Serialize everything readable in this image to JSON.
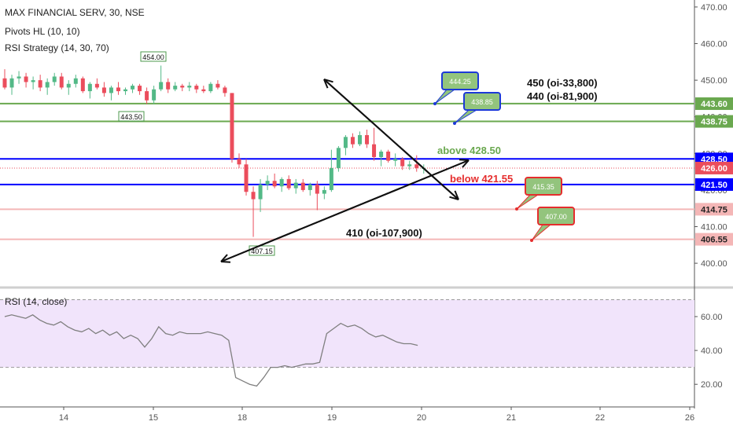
{
  "header": {
    "symbol_line": "MAX FINANCIAL SERV, 30, NSE",
    "indicator_1": "Pivots HL (10, 10)",
    "indicator_2": "RSI Strategy (14, 30, 70)"
  },
  "rsi_pane": {
    "label": "RSI (14, close)"
  },
  "colors": {
    "bull": "#53b987",
    "bear": "#eb4d5c",
    "green_line": "#6aa84f",
    "blue_line": "#0000ff",
    "pink_line": "#f4b6b6",
    "rsi_fill": "#f1e4fb",
    "rsi_line": "#7f7f7f",
    "callout_fill": "#93c47d",
    "callout_blue_border": "#1c39d8",
    "callout_red_border": "#e52d2d"
  },
  "chart_data": [
    {
      "type": "candlestick",
      "title": "MAX FINANCIAL SERV, 30, NSE",
      "x_ticks": [
        "14",
        "15",
        "18",
        "19",
        "20",
        "21",
        "22",
        "26"
      ],
      "ylim": [
        395,
        472
      ],
      "y_ticks": [
        "400.00",
        "410.00",
        "420.00",
        "430.00",
        "440.00",
        "450.00",
        "460.00",
        "470.00"
      ],
      "price_labels": [
        {
          "text": "443.60",
          "value": 443.6,
          "color": "#6aa84f"
        },
        {
          "text": "438.75",
          "value": 438.75,
          "color": "#6aa84f"
        },
        {
          "text": "428.50",
          "value": 428.5,
          "color": "#0000ff"
        },
        {
          "text": "426.00",
          "value": 426.0,
          "color": "#eb4d5c"
        },
        {
          "text": "421.50",
          "value": 421.5,
          "color": "#0000ff"
        },
        {
          "text": "414.75",
          "value": 414.75,
          "color": "#f4b6b6"
        },
        {
          "text": "406.55",
          "value": 406.55,
          "color": "#f4b6b6"
        }
      ],
      "pivot_labels": [
        {
          "text": "454.00",
          "kind": "high"
        },
        {
          "text": "443.50",
          "kind": "low"
        },
        {
          "text": "407.15",
          "kind": "low"
        }
      ],
      "annotations": [
        {
          "text": "450 (oi-33,800)",
          "color": "#111111"
        },
        {
          "text": "440 (oi-81,900)",
          "color": "#111111"
        },
        {
          "text": "above 428.50",
          "color": "#6aa84f"
        },
        {
          "text": "below 421.55",
          "color": "#e52d2d"
        },
        {
          "text": "410 (oi-107,900)",
          "color": "#111111"
        }
      ],
      "callouts": [
        {
          "text": "444.25",
          "border": "blue"
        },
        {
          "text": "438.85",
          "border": "blue"
        },
        {
          "text": "415.35",
          "border": "red"
        },
        {
          "text": "407.00",
          "border": "red"
        }
      ],
      "candles": [
        {
          "o": 450.5,
          "h": 453.0,
          "l": 447.5,
          "c": 448.0
        },
        {
          "o": 448.0,
          "h": 451.5,
          "l": 446.0,
          "c": 450.5
        },
        {
          "o": 450.5,
          "h": 452.5,
          "l": 449.0,
          "c": 451.0
        },
        {
          "o": 451.0,
          "h": 452.0,
          "l": 448.0,
          "c": 449.5
        },
        {
          "o": 449.5,
          "h": 451.0,
          "l": 447.5,
          "c": 450.0
        },
        {
          "o": 450.0,
          "h": 451.5,
          "l": 447.0,
          "c": 448.0
        },
        {
          "o": 448.0,
          "h": 450.5,
          "l": 446.0,
          "c": 449.5
        },
        {
          "o": 449.5,
          "h": 452.0,
          "l": 448.5,
          "c": 451.0
        },
        {
          "o": 451.0,
          "h": 452.0,
          "l": 447.5,
          "c": 448.0
        },
        {
          "o": 448.0,
          "h": 450.0,
          "l": 446.0,
          "c": 449.0
        },
        {
          "o": 449.0,
          "h": 451.5,
          "l": 448.0,
          "c": 450.5
        },
        {
          "o": 450.5,
          "h": 451.0,
          "l": 446.5,
          "c": 447.0
        },
        {
          "o": 447.0,
          "h": 449.5,
          "l": 445.0,
          "c": 449.0
        },
        {
          "o": 449.0,
          "h": 450.5,
          "l": 447.5,
          "c": 448.0
        },
        {
          "o": 448.0,
          "h": 449.5,
          "l": 445.5,
          "c": 446.5
        },
        {
          "o": 446.5,
          "h": 448.5,
          "l": 444.5,
          "c": 448.0
        },
        {
          "o": 448.0,
          "h": 449.5,
          "l": 446.0,
          "c": 447.0
        },
        {
          "o": 447.0,
          "h": 448.0,
          "l": 446.0,
          "c": 447.5
        },
        {
          "o": 447.5,
          "h": 449.0,
          "l": 446.5,
          "c": 448.5
        },
        {
          "o": 448.5,
          "h": 449.0,
          "l": 446.0,
          "c": 447.0
        },
        {
          "o": 447.0,
          "h": 448.0,
          "l": 443.5,
          "c": 444.5
        },
        {
          "o": 444.5,
          "h": 448.5,
          "l": 443.5,
          "c": 447.5
        },
        {
          "o": 447.5,
          "h": 454.0,
          "l": 447.0,
          "c": 449.5
        },
        {
          "o": 449.5,
          "h": 450.5,
          "l": 446.5,
          "c": 447.5
        },
        {
          "o": 447.5,
          "h": 449.5,
          "l": 447.0,
          "c": 448.5
        },
        {
          "o": 448.5,
          "h": 449.0,
          "l": 447.0,
          "c": 448.0
        },
        {
          "o": 448.0,
          "h": 449.5,
          "l": 447.0,
          "c": 448.5
        },
        {
          "o": 448.5,
          "h": 449.0,
          "l": 446.5,
          "c": 447.5
        },
        {
          "o": 447.5,
          "h": 448.5,
          "l": 446.5,
          "c": 447.0
        },
        {
          "o": 447.0,
          "h": 449.5,
          "l": 446.5,
          "c": 449.0
        },
        {
          "o": 449.0,
          "h": 450.0,
          "l": 447.5,
          "c": 448.0
        },
        {
          "o": 448.0,
          "h": 448.5,
          "l": 445.5,
          "c": 446.5
        },
        {
          "o": 446.5,
          "h": 446.5,
          "l": 427.5,
          "c": 428.5
        },
        {
          "o": 428.5,
          "h": 430.0,
          "l": 426.0,
          "c": 427.0
        },
        {
          "o": 427.0,
          "h": 428.5,
          "l": 418.5,
          "c": 419.5
        },
        {
          "o": 419.5,
          "h": 421.0,
          "l": 407.2,
          "c": 417.5
        },
        {
          "o": 417.5,
          "h": 423.0,
          "l": 414.0,
          "c": 421.5
        },
        {
          "o": 421.5,
          "h": 424.0,
          "l": 420.0,
          "c": 422.5
        },
        {
          "o": 422.5,
          "h": 424.5,
          "l": 420.5,
          "c": 421.0
        },
        {
          "o": 421.0,
          "h": 423.5,
          "l": 419.5,
          "c": 423.0
        },
        {
          "o": 423.0,
          "h": 424.0,
          "l": 420.0,
          "c": 420.5
        },
        {
          "o": 420.5,
          "h": 423.0,
          "l": 419.0,
          "c": 422.0
        },
        {
          "o": 422.0,
          "h": 423.0,
          "l": 419.5,
          "c": 420.0
        },
        {
          "o": 420.0,
          "h": 422.0,
          "l": 418.5,
          "c": 421.5
        },
        {
          "o": 421.5,
          "h": 422.5,
          "l": 414.5,
          "c": 419.0
        },
        {
          "o": 419.0,
          "h": 421.0,
          "l": 417.5,
          "c": 420.0
        },
        {
          "o": 420.0,
          "h": 431.0,
          "l": 419.5,
          "c": 426.0
        },
        {
          "o": 426.0,
          "h": 432.0,
          "l": 425.0,
          "c": 431.5
        },
        {
          "o": 431.5,
          "h": 435.0,
          "l": 429.5,
          "c": 434.5
        },
        {
          "o": 434.5,
          "h": 435.5,
          "l": 431.5,
          "c": 432.5
        },
        {
          "o": 432.5,
          "h": 436.0,
          "l": 432.0,
          "c": 435.0
        },
        {
          "o": 435.0,
          "h": 436.5,
          "l": 431.5,
          "c": 432.5
        },
        {
          "o": 432.5,
          "h": 437.0,
          "l": 428.0,
          "c": 429.0
        },
        {
          "o": 429.0,
          "h": 431.0,
          "l": 426.5,
          "c": 430.5
        },
        {
          "o": 430.5,
          "h": 431.0,
          "l": 427.5,
          "c": 428.0
        },
        {
          "o": 428.0,
          "h": 430.0,
          "l": 426.5,
          "c": 428.5
        },
        {
          "o": 428.5,
          "h": 429.0,
          "l": 425.5,
          "c": 426.5
        },
        {
          "o": 426.5,
          "h": 428.0,
          "l": 425.5,
          "c": 427.0
        },
        {
          "o": 427.0,
          "h": 429.5,
          "l": 425.0,
          "c": 426.0
        },
        {
          "o": 426.0,
          "h": 427.0,
          "l": 424.5,
          "c": 426.0
        }
      ]
    },
    {
      "type": "line",
      "title": "RSI (14, close)",
      "ylim": [
        10,
        74
      ],
      "y_ticks": [
        "20.00",
        "40.00",
        "60.00"
      ],
      "band": [
        30,
        70
      ],
      "values": [
        60,
        61,
        60,
        59,
        61,
        58,
        56,
        55,
        57,
        54,
        52,
        51,
        53,
        50,
        52,
        49,
        51,
        47,
        49,
        47,
        42,
        47,
        54,
        50,
        49,
        51,
        50,
        50,
        50,
        51,
        50,
        49,
        46,
        24,
        22,
        20,
        19,
        24,
        30,
        30,
        31,
        30,
        31,
        32,
        32,
        33,
        50,
        53,
        56,
        54,
        55,
        53,
        50,
        48,
        49,
        47,
        45,
        44,
        44,
        43
      ]
    }
  ]
}
